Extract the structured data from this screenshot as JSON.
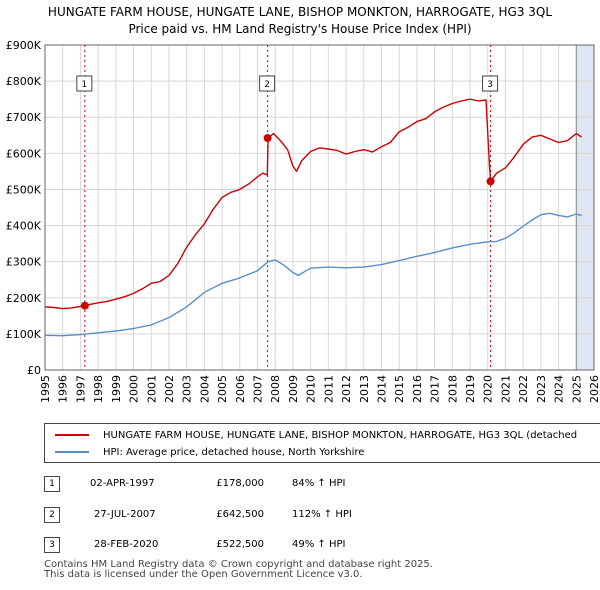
{
  "header": {
    "title_line1": "HUNGATE FARM HOUSE, HUNGATE LANE, BISHOP MONKTON, HARROGATE, HG3 3QL",
    "title_line2": "Price paid vs. HM Land Registry's House Price Index (HPI)"
  },
  "legend": {
    "property_label": "HUNGATE FARM HOUSE, HUNGATE LANE, BISHOP MONKTON, HARROGATE, HG3 3QL (detached",
    "hpi_label": "HPI: Average price, detached house, North Yorkshire"
  },
  "sales": [
    {
      "num": "1",
      "date": "02-APR-1997",
      "price": "£178,000",
      "hpi": "84% ↑ HPI"
    },
    {
      "num": "2",
      "date": "27-JUL-2007",
      "price": "£642,500",
      "hpi": "112% ↑ HPI"
    },
    {
      "num": "3",
      "date": "28-FEB-2020",
      "price": "£522,500",
      "hpi": "49% ↑ HPI"
    }
  ],
  "footer": {
    "line1": "Contains HM Land Registry data © Crown copyright and database right 2025.",
    "line2": "This data is licensed under the Open Government Licence v3.0."
  },
  "colors": {
    "property": "#cc0000",
    "hpi": "#5b8ec9",
    "shade": "#dde6f2",
    "grid": "#d8d8d8"
  },
  "chart_data": {
    "type": "line",
    "title": "HUNGATE FARM HOUSE, HUNGATE LANE, BISHOP MONKTON, HARROGATE, HG3 3QL Price paid vs. HM Land Registry's House Price Index (HPI)",
    "xlabel": "",
    "ylabel": "",
    "xlim": [
      1995,
      2026
    ],
    "ylim": [
      0,
      900000
    ],
    "x_ticks": [
      1995,
      1996,
      1997,
      1998,
      1999,
      2000,
      2001,
      2002,
      2003,
      2004,
      2005,
      2006,
      2007,
      2008,
      2009,
      2010,
      2011,
      2012,
      2013,
      2014,
      2015,
      2016,
      2017,
      2018,
      2019,
      2020,
      2021,
      2022,
      2023,
      2024,
      2025,
      2026
    ],
    "y_ticks": [
      0,
      100000,
      200000,
      300000,
      400000,
      500000,
      600000,
      700000,
      800000,
      900000
    ],
    "y_tick_labels": [
      "£0",
      "£100K",
      "£200K",
      "£300K",
      "£400K",
      "£500K",
      "£600K",
      "£700K",
      "£800K",
      "£900K"
    ],
    "grid": true,
    "series": [
      {
        "name": "HUNGATE FARM HOUSE, HUNGATE LANE, BISHOP MONKTON, HARROGATE, HG3 3QL (detached",
        "x": [
          1995.0,
          1995.5,
          1996.0,
          1996.5,
          1997.0,
          1997.25,
          1997.5,
          1998.0,
          1998.5,
          1999.0,
          1999.5,
          2000.0,
          2000.5,
          2001.0,
          2001.5,
          2002.0,
          2002.5,
          2003.0,
          2003.5,
          2004.0,
          2004.5,
          2005.0,
          2005.5,
          2006.0,
          2006.5,
          2007.0,
          2007.3,
          2007.55,
          2007.6,
          2007.9,
          2008.3,
          2008.7,
          2009.0,
          2009.2,
          2009.5,
          2010.0,
          2010.5,
          2011.0,
          2011.5,
          2012.0,
          2012.5,
          2013.0,
          2013.5,
          2014.0,
          2014.5,
          2015.0,
          2015.5,
          2016.0,
          2016.5,
          2017.0,
          2017.5,
          2018.0,
          2018.5,
          2019.0,
          2019.5,
          2019.9,
          2020.1,
          2020.16,
          2020.5,
          2021.0,
          2021.5,
          2022.0,
          2022.5,
          2023.0,
          2023.5,
          2024.0,
          2024.5,
          2025.0,
          2025.3
        ],
        "values": [
          175000,
          173000,
          170000,
          172000,
          176000,
          178000,
          181000,
          186000,
          190000,
          196000,
          203000,
          212000,
          225000,
          240000,
          245000,
          262000,
          295000,
          340000,
          375000,
          405000,
          445000,
          478000,
          492000,
          500000,
          515000,
          535000,
          545000,
          540000,
          642500,
          655000,
          635000,
          610000,
          565000,
          550000,
          580000,
          605000,
          615000,
          612000,
          608000,
          598000,
          605000,
          610000,
          604000,
          618000,
          630000,
          660000,
          672000,
          688000,
          696000,
          715000,
          728000,
          738000,
          745000,
          750000,
          745000,
          748000,
          565000,
          522500,
          545000,
          560000,
          590000,
          625000,
          645000,
          650000,
          640000,
          630000,
          635000,
          655000,
          645000
        ]
      },
      {
        "name": "HPI: Average price, detached house, North Yorkshire",
        "x": [
          1995.0,
          1996.0,
          1997.0,
          1998.0,
          1999.0,
          2000.0,
          2001.0,
          2002.0,
          2003.0,
          2004.0,
          2005.0,
          2006.0,
          2007.0,
          2007.6,
          2008.0,
          2008.5,
          2009.0,
          2009.3,
          2010.0,
          2011.0,
          2012.0,
          2013.0,
          2014.0,
          2015.0,
          2016.0,
          2017.0,
          2018.0,
          2019.0,
          2020.0,
          2020.5,
          2021.0,
          2021.5,
          2022.0,
          2022.5,
          2023.0,
          2023.5,
          2024.0,
          2024.5,
          2025.0,
          2025.3
        ],
        "values": [
          96000,
          95000,
          98000,
          103000,
          108000,
          115000,
          125000,
          145000,
          175000,
          215000,
          240000,
          255000,
          275000,
          300000,
          305000,
          290000,
          270000,
          262000,
          282000,
          285000,
          283000,
          285000,
          292000,
          303000,
          315000,
          325000,
          338000,
          348000,
          355000,
          356000,
          365000,
          380000,
          398000,
          415000,
          430000,
          434000,
          428000,
          424000,
          432000,
          428000
        ]
      }
    ],
    "sale_markers": [
      {
        "label": "1",
        "x": 1997.25,
        "value": 178000
      },
      {
        "label": "2",
        "x": 2007.57,
        "value": 642500
      },
      {
        "label": "3",
        "x": 2020.16,
        "value": 522500
      }
    ],
    "shaded_x_after": 2025.0
  }
}
